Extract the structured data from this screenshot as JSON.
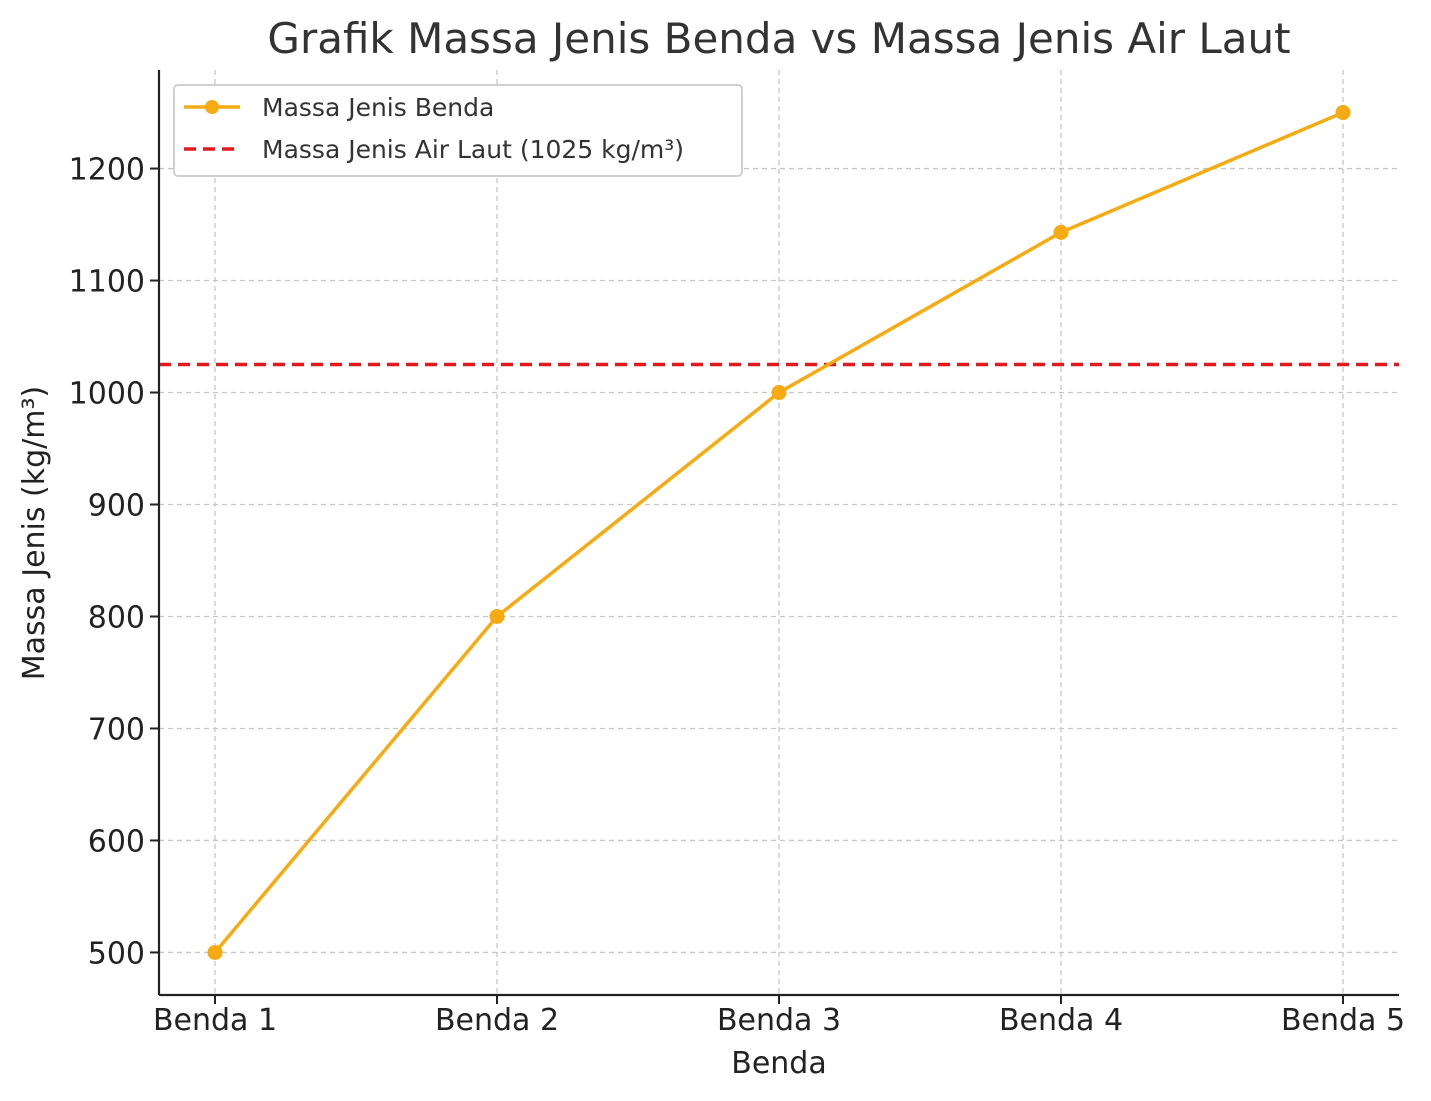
{
  "chart_data": {
    "type": "line",
    "title": "Grafik Massa Jenis Benda vs Massa Jenis Air Laut",
    "xlabel": "Benda",
    "ylabel": "Massa Jenis (kg/m³)",
    "categories": [
      "Benda 1",
      "Benda 2",
      "Benda 3",
      "Benda 4",
      "Benda 5"
    ],
    "series": [
      {
        "name": "Massa Jenis Benda",
        "values": [
          500,
          800,
          1000,
          1143,
          1250
        ],
        "color": "#f5ab11",
        "style": "solid",
        "marker": "circle"
      }
    ],
    "reference_lines": [
      {
        "name": "Massa Jenis Air Laut (1025 kg/m³)",
        "y": 1025,
        "color": "#e3191b",
        "style": "dashed"
      }
    ],
    "y_ticks": [
      500,
      600,
      700,
      800,
      900,
      1000,
      1100,
      1200
    ],
    "ylim": [
      462,
      1288
    ],
    "grid": true,
    "legend_position": "top-left"
  }
}
